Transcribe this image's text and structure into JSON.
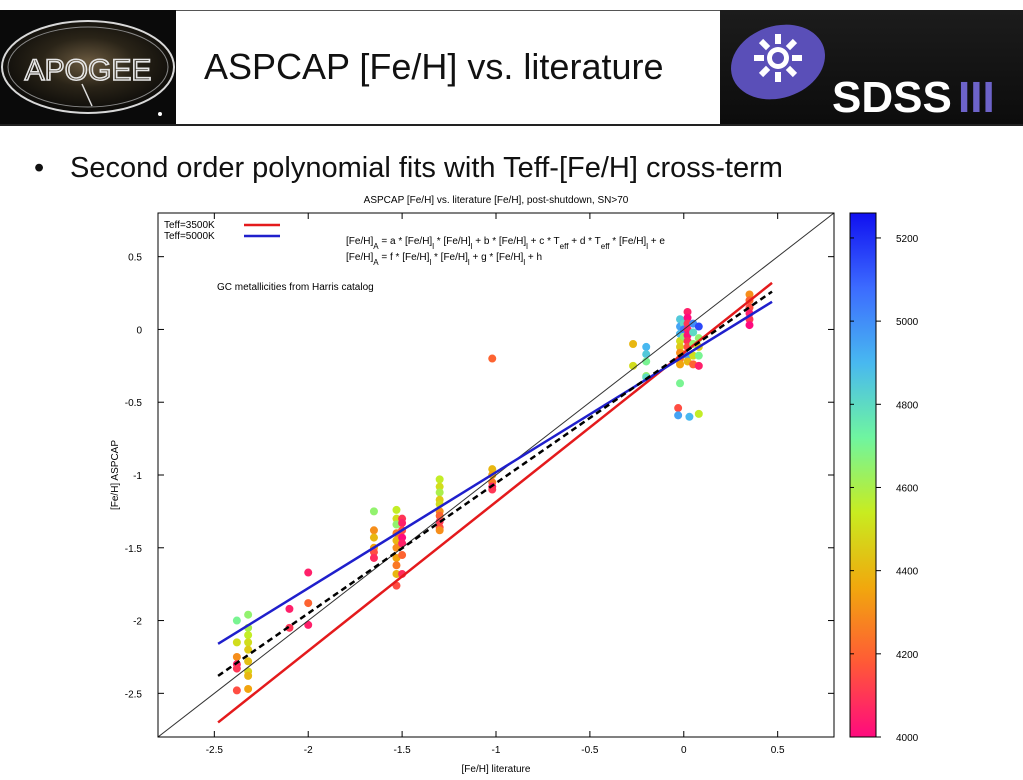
{
  "slide": {
    "title": "ASPCAP [Fe/H] vs. literature",
    "bullet": "Second order polynomial fits with Teff-[Fe/H] cross-term",
    "logo_left_text": "APOGEE",
    "logo_right_text": "SDSS",
    "logo_right_roman": "III"
  },
  "chart_data": {
    "type": "scatter",
    "title": "ASPCAP [Fe/H] vs. literature [Fe/H], post-shutdown, SN>70",
    "xlabel": "[Fe/H] literature",
    "ylabel": "[Fe/H] ASPCAP",
    "xlim": [
      -2.8,
      0.8
    ],
    "ylim": [
      -2.8,
      0.8
    ],
    "xticks": [
      -2.5,
      -2,
      -1.5,
      -1,
      -0.5,
      0,
      0.5
    ],
    "yticks": [
      -2.5,
      -2,
      -1.5,
      -1,
      -0.5,
      0,
      0.5
    ],
    "xtick_labels": [
      "-2.5",
      "-2",
      "-1.5",
      "-1",
      "-0.5",
      "0",
      "0.5"
    ],
    "ytick_labels": [
      "-2.5",
      "-2",
      "-1.5",
      "-1",
      "-0.5",
      "0",
      "0.5"
    ],
    "legend": {
      "placement": "top-left",
      "entries": [
        {
          "label": "Teff=3500K",
          "color": "#e41a1c"
        },
        {
          "label": "Teff=5000K",
          "color": "#1f1fcc"
        }
      ]
    },
    "annotations": {
      "eq1": "[Fe/H]A = a * [Fe/H]l * [Fe/H]l + b * [Fe/H]l + c * Teff + d * Teff * [Fe/H]l + e",
      "eq2": "[Fe/H]A = f * [Fe/H]l * [Fe/H]l + g * [Fe/H]l + h",
      "note": "GC metallicities from Harris catalog"
    },
    "lines": [
      {
        "style": "thin-solid",
        "color": "#333333",
        "x": [
          -2.8,
          0.8
        ],
        "y": [
          -2.8,
          0.8
        ]
      },
      {
        "style": "solid",
        "color": "#e41a1c",
        "x": [
          -2.48,
          0.47
        ],
        "y": [
          -2.7,
          0.32
        ]
      },
      {
        "style": "solid",
        "color": "#1f1fcc",
        "x": [
          -2.48,
          0.47
        ],
        "y": [
          -2.16,
          0.19
        ]
      },
      {
        "style": "dashed",
        "color": "#000000",
        "x": [
          -2.48,
          0.47
        ],
        "y": [
          -2.38,
          0.26
        ]
      }
    ],
    "colorbar": {
      "min": 4000,
      "max": 5260,
      "ticks": [
        4000,
        4200,
        4400,
        4600,
        4800,
        5000,
        5200
      ],
      "tick_labels": [
        "4000",
        "4200",
        "4400",
        "4600",
        "4800",
        "5000",
        "5200"
      ],
      "colors": [
        "#ff0a7e",
        "#ff5a36",
        "#f1a80d",
        "#c8ec20",
        "#6ff5a0",
        "#48b8f0",
        "#3c6bff",
        "#1010f0"
      ]
    },
    "points": [
      {
        "x": -2.38,
        "y": -2.0,
        "t": 4700
      },
      {
        "x": -2.38,
        "y": -2.15,
        "t": 4500
      },
      {
        "x": -2.38,
        "y": -2.25,
        "t": 4300
      },
      {
        "x": -2.38,
        "y": -2.3,
        "t": 4050
      },
      {
        "x": -2.38,
        "y": -2.33,
        "t": 4100
      },
      {
        "x": -2.38,
        "y": -2.48,
        "t": 4150
      },
      {
        "x": -2.32,
        "y": -1.96,
        "t": 4650
      },
      {
        "x": -2.32,
        "y": -2.05,
        "t": 4600
      },
      {
        "x": -2.32,
        "y": -2.1,
        "t": 4550
      },
      {
        "x": -2.32,
        "y": -2.15,
        "t": 4500
      },
      {
        "x": -2.32,
        "y": -2.2,
        "t": 4450
      },
      {
        "x": -2.32,
        "y": -2.28,
        "t": 4420
      },
      {
        "x": -2.32,
        "y": -2.35,
        "t": 4480
      },
      {
        "x": -2.32,
        "y": -2.38,
        "t": 4400
      },
      {
        "x": -2.32,
        "y": -2.47,
        "t": 4350
      },
      {
        "x": -2.1,
        "y": -1.92,
        "t": 4050
      },
      {
        "x": -2.1,
        "y": -2.05,
        "t": 4100
      },
      {
        "x": -2.0,
        "y": -1.67,
        "t": 4050
      },
      {
        "x": -2.0,
        "y": -1.88,
        "t": 4200
      },
      {
        "x": -2.0,
        "y": -2.03,
        "t": 4050
      },
      {
        "x": -1.65,
        "y": -1.25,
        "t": 4650
      },
      {
        "x": -1.65,
        "y": -1.38,
        "t": 4300
      },
      {
        "x": -1.65,
        "y": -1.43,
        "t": 4400
      },
      {
        "x": -1.65,
        "y": -1.5,
        "t": 4350
      },
      {
        "x": -1.65,
        "y": -1.53,
        "t": 4150
      },
      {
        "x": -1.65,
        "y": -1.57,
        "t": 4080
      },
      {
        "x": -1.53,
        "y": -1.24,
        "t": 4550
      },
      {
        "x": -1.53,
        "y": -1.3,
        "t": 4500
      },
      {
        "x": -1.53,
        "y": -1.34,
        "t": 4650
      },
      {
        "x": -1.53,
        "y": -1.4,
        "t": 4250
      },
      {
        "x": -1.53,
        "y": -1.45,
        "t": 4400
      },
      {
        "x": -1.53,
        "y": -1.5,
        "t": 4300
      },
      {
        "x": -1.53,
        "y": -1.57,
        "t": 4350
      },
      {
        "x": -1.53,
        "y": -1.62,
        "t": 4250
      },
      {
        "x": -1.53,
        "y": -1.68,
        "t": 4400
      },
      {
        "x": -1.53,
        "y": -1.76,
        "t": 4150
      },
      {
        "x": -1.5,
        "y": -1.3,
        "t": 4100
      },
      {
        "x": -1.5,
        "y": -1.33,
        "t": 4050
      },
      {
        "x": -1.5,
        "y": -1.38,
        "t": 4150
      },
      {
        "x": -1.5,
        "y": -1.43,
        "t": 4000
      },
      {
        "x": -1.5,
        "y": -1.47,
        "t": 4050
      },
      {
        "x": -1.5,
        "y": -1.55,
        "t": 4200
      },
      {
        "x": -1.5,
        "y": -1.68,
        "t": 4080
      },
      {
        "x": -1.3,
        "y": -1.03,
        "t": 4550
      },
      {
        "x": -1.3,
        "y": -1.08,
        "t": 4500
      },
      {
        "x": -1.3,
        "y": -1.12,
        "t": 4600
      },
      {
        "x": -1.3,
        "y": -1.17,
        "t": 4450
      },
      {
        "x": -1.3,
        "y": -1.2,
        "t": 4500
      },
      {
        "x": -1.3,
        "y": -1.25,
        "t": 4300
      },
      {
        "x": -1.3,
        "y": -1.28,
        "t": 4200
      },
      {
        "x": -1.3,
        "y": -1.32,
        "t": 4100
      },
      {
        "x": -1.3,
        "y": -1.36,
        "t": 4150
      },
      {
        "x": -1.3,
        "y": -1.38,
        "t": 4300
      },
      {
        "x": -1.02,
        "y": -0.2,
        "t": 4200
      },
      {
        "x": -1.02,
        "y": -0.96,
        "t": 4400
      },
      {
        "x": -1.02,
        "y": -1.0,
        "t": 4350
      },
      {
        "x": -1.02,
        "y": -1.05,
        "t": 4250
      },
      {
        "x": -1.02,
        "y": -1.08,
        "t": 4050
      },
      {
        "x": -1.02,
        "y": -1.1,
        "t": 4100
      },
      {
        "x": -0.27,
        "y": -0.1,
        "t": 4400
      },
      {
        "x": -0.27,
        "y": -0.25,
        "t": 4500
      },
      {
        "x": -0.2,
        "y": -0.12,
        "t": 4900
      },
      {
        "x": -0.2,
        "y": -0.17,
        "t": 4850
      },
      {
        "x": -0.2,
        "y": -0.22,
        "t": 4700
      },
      {
        "x": -0.2,
        "y": -0.32,
        "t": 4650
      },
      {
        "x": -0.2,
        "y": -0.33,
        "t": 4800
      },
      {
        "x": -0.02,
        "y": 0.07,
        "t": 4850
      },
      {
        "x": -0.02,
        "y": 0.02,
        "t": 4950
      },
      {
        "x": -0.02,
        "y": -0.03,
        "t": 4900
      },
      {
        "x": -0.02,
        "y": -0.08,
        "t": 4500
      },
      {
        "x": -0.02,
        "y": -0.12,
        "t": 4450
      },
      {
        "x": -0.02,
        "y": -0.16,
        "t": 4300
      },
      {
        "x": -0.02,
        "y": -0.2,
        "t": 4250
      },
      {
        "x": -0.02,
        "y": -0.24,
        "t": 4350
      },
      {
        "x": -0.02,
        "y": -0.37,
        "t": 4700
      },
      {
        "x": -0.03,
        "y": -0.54,
        "t": 4150
      },
      {
        "x": -0.03,
        "y": -0.59,
        "t": 4950
      },
      {
        "x": 0.0,
        "y": 0.04,
        "t": 4800
      },
      {
        "x": 0.0,
        "y": 0.0,
        "t": 5050
      },
      {
        "x": 0.0,
        "y": -0.05,
        "t": 4650
      },
      {
        "x": 0.0,
        "y": -0.17,
        "t": 4300
      },
      {
        "x": 0.02,
        "y": 0.12,
        "t": 4050
      },
      {
        "x": 0.02,
        "y": 0.08,
        "t": 4000
      },
      {
        "x": 0.02,
        "y": 0.04,
        "t": 4100
      },
      {
        "x": 0.02,
        "y": 0.0,
        "t": 4050
      },
      {
        "x": 0.02,
        "y": -0.04,
        "t": 4020
      },
      {
        "x": 0.02,
        "y": -0.08,
        "t": 4080
      },
      {
        "x": 0.02,
        "y": -0.12,
        "t": 4150
      },
      {
        "x": 0.02,
        "y": -0.18,
        "t": 4950
      },
      {
        "x": 0.02,
        "y": -0.22,
        "t": 4400
      },
      {
        "x": 0.03,
        "y": -0.6,
        "t": 4900
      },
      {
        "x": 0.05,
        "y": 0.04,
        "t": 5000
      },
      {
        "x": 0.05,
        "y": -0.02,
        "t": 4800
      },
      {
        "x": 0.05,
        "y": -0.1,
        "t": 4650
      },
      {
        "x": 0.05,
        "y": -0.18,
        "t": 4500
      },
      {
        "x": 0.05,
        "y": -0.24,
        "t": 4200
      },
      {
        "x": 0.08,
        "y": 0.02,
        "t": 5150
      },
      {
        "x": 0.08,
        "y": -0.06,
        "t": 4650
      },
      {
        "x": 0.08,
        "y": -0.12,
        "t": 4450
      },
      {
        "x": 0.08,
        "y": -0.18,
        "t": 4700
      },
      {
        "x": 0.08,
        "y": -0.25,
        "t": 4050
      },
      {
        "x": 0.08,
        "y": -0.58,
        "t": 4550
      },
      {
        "x": 0.35,
        "y": 0.24,
        "t": 4300
      },
      {
        "x": 0.35,
        "y": 0.2,
        "t": 4200
      },
      {
        "x": 0.35,
        "y": 0.15,
        "t": 4150
      },
      {
        "x": 0.35,
        "y": 0.11,
        "t": 4050
      },
      {
        "x": 0.35,
        "y": 0.07,
        "t": 4100
      },
      {
        "x": 0.35,
        "y": 0.03,
        "t": 4000
      }
    ]
  }
}
